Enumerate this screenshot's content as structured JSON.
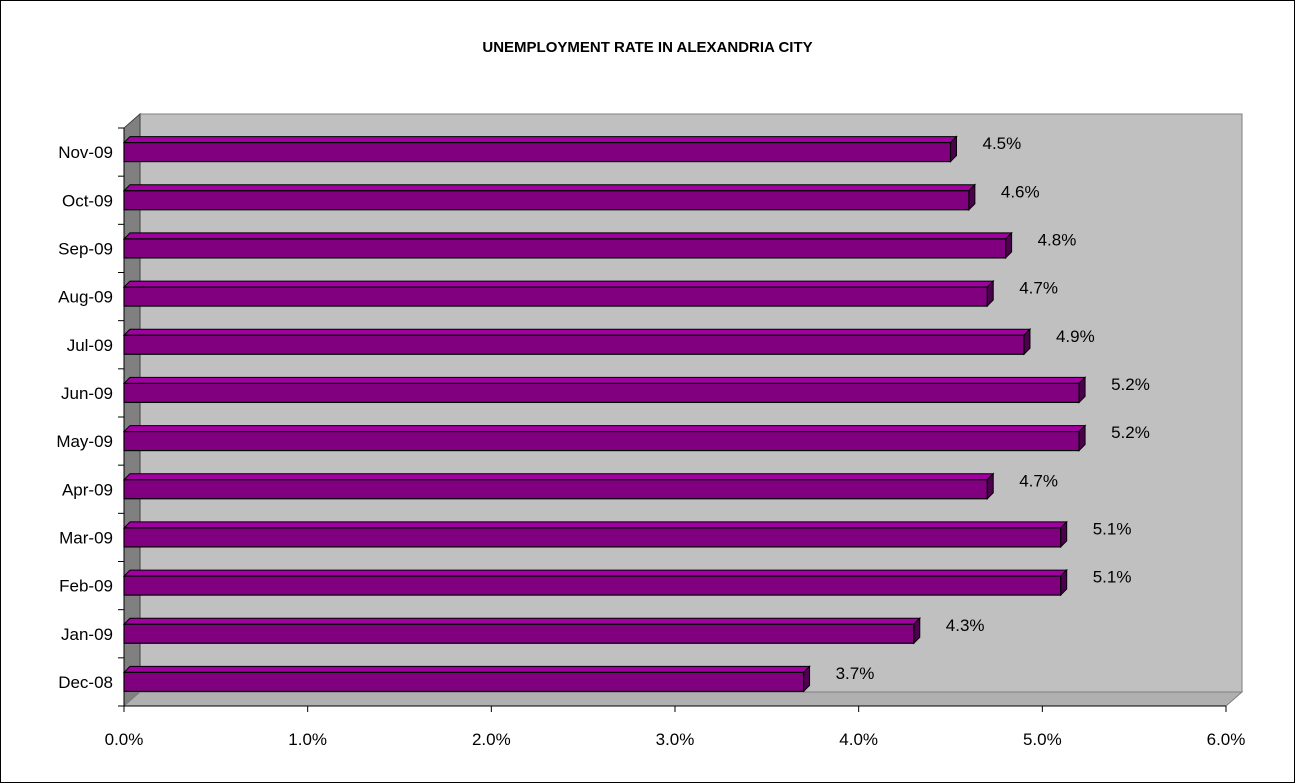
{
  "chart_data": {
    "type": "bar",
    "orientation": "horizontal",
    "title": "UNEMPLOYMENT RATE IN ALEXANDRIA CITY",
    "xlabel": "",
    "ylabel": "",
    "categories": [
      "Dec-08",
      "Jan-09",
      "Feb-09",
      "Mar-09",
      "Apr-09",
      "May-09",
      "Jun-09",
      "Jul-09",
      "Aug-09",
      "Sep-09",
      "Oct-09",
      "Nov-09"
    ],
    "values": [
      3.7,
      4.3,
      5.1,
      5.1,
      4.7,
      5.2,
      5.2,
      4.9,
      4.7,
      4.8,
      4.6,
      4.5
    ],
    "value_labels": [
      "3.7%",
      "4.3%",
      "5.1%",
      "5.1%",
      "4.7%",
      "5.2%",
      "5.2%",
      "4.9%",
      "4.7%",
      "4.8%",
      "4.6%",
      "4.5%"
    ],
    "xlim": [
      0,
      6
    ],
    "x_ticks": [
      "0.0%",
      "1.0%",
      "2.0%",
      "3.0%",
      "4.0%",
      "5.0%",
      "6.0%"
    ],
    "grid": false,
    "legend": "none",
    "colors": {
      "bar": "#800080",
      "bar_top": "#a000a0",
      "bar_side": "#4d004d",
      "plot_wall": "#c0c0c0",
      "side_wall": "#808080"
    }
  }
}
